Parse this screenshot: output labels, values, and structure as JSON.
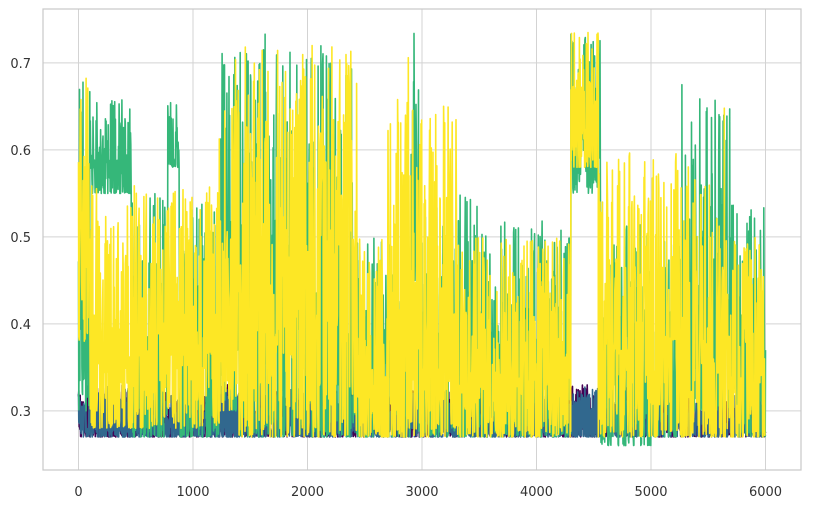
{
  "chart_data": {
    "type": "line",
    "title": "",
    "xlabel": "",
    "ylabel": "",
    "xlim": [
      -310,
      6310
    ],
    "ylim": [
      0.232,
      0.762
    ],
    "x_ticks": [
      0,
      1000,
      2000,
      3000,
      4000,
      5000,
      6000
    ],
    "x_tick_labels": [
      "0",
      "1000",
      "2000",
      "3000",
      "4000",
      "5000",
      "6000"
    ],
    "y_ticks": [
      0.3,
      0.4,
      0.5,
      0.6,
      0.7
    ],
    "y_tick_labels": [
      "0.3",
      "0.4",
      "0.5",
      "0.6",
      "0.7"
    ],
    "grid": true,
    "legend": "none",
    "series_count": 4,
    "n_points": 6000,
    "series": [
      {
        "color": "#440154",
        "segments": [
          {
            "x": [
              0,
              6000
            ],
            "low": 0.27,
            "high": 0.33
          }
        ],
        "peaks": [
          [
            1050,
            0.378
          ],
          [
            1180,
            0.356
          ],
          [
            3060,
            0.343
          ]
        ]
      },
      {
        "color": "#31688e",
        "segments": [
          {
            "x": [
              0,
              6000
            ],
            "low": 0.27,
            "high": 0.32
          },
          {
            "x": [
              150,
              630
            ],
            "low": 0.27,
            "high": 0.33
          },
          {
            "x": [
              1250,
              1400
            ],
            "low": 0.27,
            "high": 0.33
          },
          {
            "x": [
              1850,
              2130
            ],
            "low": 0.27,
            "high": 0.33
          },
          {
            "x": [
              4300,
              4560
            ],
            "low": 0.27,
            "high": 0.33
          }
        ]
      },
      {
        "color": "#35b779",
        "segments": [
          {
            "x": [
              0,
              100
            ],
            "low": 0.3,
            "high": 0.68
          },
          {
            "x": [
              100,
              460
            ],
            "low": 0.55,
            "high": 0.66
          },
          {
            "x": [
              460,
              780
            ],
            "low": 0.27,
            "high": 0.55
          },
          {
            "x": [
              780,
              880
            ],
            "low": 0.58,
            "high": 0.66
          },
          {
            "x": [
              880,
              1230
            ],
            "low": 0.27,
            "high": 0.55
          },
          {
            "x": [
              1230,
              1400
            ],
            "low": 0.3,
            "high": 0.72
          },
          {
            "x": [
              1400,
              2400
            ],
            "low": 0.27,
            "high": 0.72
          },
          {
            "x": [
              2400,
              2900
            ],
            "low": 0.27,
            "high": 0.5
          },
          {
            "x": [
              2900,
              2970
            ],
            "low": 0.45,
            "high": 0.73
          },
          {
            "x": [
              2970,
              3500
            ],
            "low": 0.27,
            "high": 0.55
          },
          {
            "x": [
              3500,
              4300
            ],
            "low": 0.27,
            "high": 0.52
          },
          {
            "x": [
              4300,
              4560
            ],
            "low": 0.55,
            "high": 0.73
          },
          {
            "x": [
              4560,
              5000
            ],
            "low": 0.26,
            "high": 0.52
          },
          {
            "x": [
              5000,
              5300
            ],
            "low": 0.27,
            "high": 0.5
          },
          {
            "x": [
              5300,
              5700
            ],
            "low": 0.3,
            "high": 0.66
          },
          {
            "x": [
              5700,
              6000
            ],
            "low": 0.27,
            "high": 0.54
          }
        ],
        "peaks": [
          [
            1630,
            0.733
          ],
          [
            2930,
            0.734
          ],
          [
            4300,
            0.733
          ],
          [
            5270,
            0.675
          ],
          [
            5560,
            0.657
          ]
        ]
      },
      {
        "color": "#fde725",
        "segments": [
          {
            "x": [
              0,
              100
            ],
            "low": 0.38,
            "high": 0.69
          },
          {
            "x": [
              100,
              1230
            ],
            "low": 0.28,
            "high": 0.56
          },
          {
            "x": [
              1230,
              1400
            ],
            "low": 0.3,
            "high": 0.71
          },
          {
            "x": [
              1400,
              2440
            ],
            "low": 0.27,
            "high": 0.72
          },
          {
            "x": [
              2440,
              2700
            ],
            "low": 0.27,
            "high": 0.5
          },
          {
            "x": [
              2700,
              3300
            ],
            "low": 0.27,
            "high": 0.66
          },
          {
            "x": [
              3300,
              4300
            ],
            "low": 0.27,
            "high": 0.5
          },
          {
            "x": [
              4300,
              4540
            ],
            "low": 0.58,
            "high": 0.74
          },
          {
            "x": [
              4540,
              5600
            ],
            "low": 0.27,
            "high": 0.6
          },
          {
            "x": [
              5600,
              6000
            ],
            "low": 0.27,
            "high": 0.5
          }
        ],
        "peaks": [
          [
            2040,
            0.72
          ],
          [
            2880,
            0.706
          ],
          [
            4450,
            0.735
          ],
          [
            5640,
            0.648
          ]
        ]
      }
    ]
  }
}
